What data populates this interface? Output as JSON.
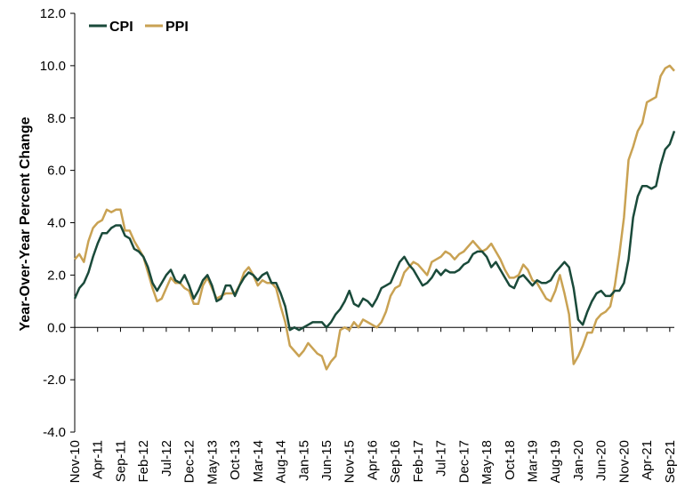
{
  "chart_data": {
    "type": "line",
    "ylabel": "Year-Over-Year Percent Change",
    "ylim": [
      -4.0,
      12.0
    ],
    "y_ticks": [
      "12.0",
      "10.0",
      "8.0",
      "6.0",
      "4.0",
      "2.0",
      "0.0",
      "-2.0",
      "-4.0"
    ],
    "x_tick_labels": [
      "Nov-10",
      "Apr-11",
      "Sep-11",
      "Feb-12",
      "Jul-12",
      "Dec-12",
      "May-13",
      "Oct-13",
      "Mar-14",
      "Aug-14",
      "Jan-15",
      "Jun-15",
      "Nov-15",
      "Apr-16",
      "Sep-16",
      "Feb-17",
      "Jul-17",
      "Dec-17",
      "May-18",
      "Oct-18",
      "Mar-19",
      "Aug-19",
      "Jan-20",
      "Jun-20",
      "Nov-20",
      "Apr-21",
      "Sep-21"
    ],
    "legend_position": "top-left",
    "grid": false,
    "x_start": "2010-11",
    "x_end": "2021-12",
    "series": [
      {
        "name": "CPI",
        "color": "#1a4a3a",
        "values": [
          1.1,
          1.5,
          1.7,
          2.1,
          2.7,
          3.2,
          3.6,
          3.6,
          3.8,
          3.9,
          3.9,
          3.5,
          3.4,
          3.0,
          2.9,
          2.7,
          2.3,
          1.7,
          1.4,
          1.7,
          2.0,
          2.2,
          1.8,
          1.7,
          2.0,
          1.6,
          1.1,
          1.4,
          1.8,
          2.0,
          1.6,
          1.0,
          1.1,
          1.6,
          1.6,
          1.2,
          1.6,
          1.9,
          2.1,
          2.0,
          1.8,
          2.0,
          2.1,
          1.7,
          1.7,
          1.3,
          0.8,
          -0.1,
          0.0,
          -0.1,
          0.0,
          0.1,
          0.2,
          0.2,
          0.2,
          0.0,
          0.2,
          0.5,
          0.7,
          1.0,
          1.4,
          0.9,
          0.8,
          1.1,
          1.0,
          0.8,
          1.1,
          1.5,
          1.6,
          1.7,
          2.1,
          2.5,
          2.7,
          2.4,
          2.2,
          1.9,
          1.6,
          1.7,
          1.9,
          2.2,
          2.0,
          2.2,
          2.1,
          2.1,
          2.2,
          2.4,
          2.5,
          2.8,
          2.9,
          2.9,
          2.7,
          2.3,
          2.5,
          2.2,
          1.9,
          1.6,
          1.5,
          1.9,
          2.0,
          1.8,
          1.6,
          1.8,
          1.7,
          1.7,
          1.8,
          2.1,
          2.3,
          2.5,
          2.3,
          1.5,
          0.3,
          0.1,
          0.6,
          1.0,
          1.3,
          1.4,
          1.2,
          1.2,
          1.4,
          1.4,
          1.7,
          2.6,
          4.2,
          5.0,
          5.4,
          5.4,
          5.3,
          5.4,
          6.2,
          6.8,
          7.0,
          7.5
        ]
      },
      {
        "name": "PPI",
        "color": "#c9a253",
        "values": [
          2.6,
          2.8,
          2.5,
          3.3,
          3.8,
          4.0,
          4.1,
          4.5,
          4.4,
          4.5,
          4.5,
          3.7,
          3.7,
          3.3,
          3.0,
          2.7,
          2.1,
          1.5,
          1.0,
          1.1,
          1.5,
          1.9,
          1.7,
          1.7,
          1.5,
          1.4,
          0.9,
          0.9,
          1.6,
          1.9,
          1.5,
          1.1,
          1.2,
          1.3,
          1.3,
          1.3,
          1.6,
          2.1,
          2.3,
          2.0,
          1.6,
          1.8,
          1.7,
          1.7,
          1.5,
          0.8,
          0.2,
          -0.7,
          -0.9,
          -1.1,
          -0.9,
          -0.6,
          -0.8,
          -1.0,
          -1.1,
          -1.6,
          -1.3,
          -1.1,
          -0.1,
          0.0,
          -0.1,
          0.2,
          0.0,
          0.3,
          0.2,
          0.1,
          0.0,
          0.2,
          0.6,
          1.2,
          1.5,
          1.6,
          2.1,
          2.3,
          2.5,
          2.4,
          2.2,
          2.0,
          2.5,
          2.6,
          2.7,
          2.9,
          2.8,
          2.6,
          2.8,
          2.9,
          3.1,
          3.3,
          3.1,
          2.9,
          3.0,
          3.2,
          2.9,
          2.6,
          2.2,
          1.9,
          1.9,
          2.0,
          2.4,
          2.2,
          1.8,
          1.7,
          1.4,
          1.1,
          1.0,
          1.4,
          2.0,
          1.3,
          0.5,
          -1.4,
          -1.1,
          -0.7,
          -0.2,
          -0.2,
          0.3,
          0.5,
          0.6,
          0.8,
          1.6,
          2.8,
          4.2,
          6.4,
          6.9,
          7.5,
          7.8,
          8.6,
          8.7,
          8.8,
          9.6,
          9.9,
          10.0,
          9.8
        ]
      }
    ]
  }
}
